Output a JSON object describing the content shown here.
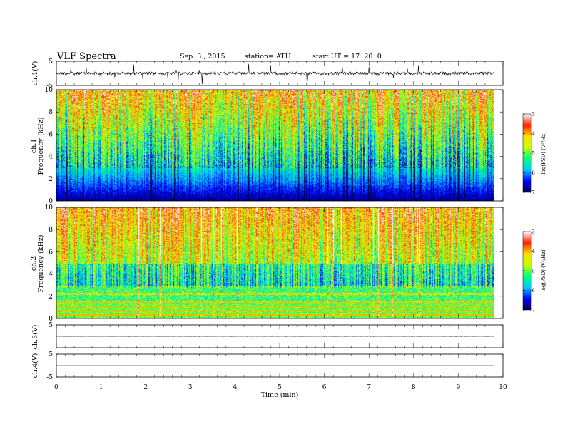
{
  "header": {
    "title": "VLF  Spectra",
    "date": "Sep. 3  , 2015",
    "station": "station= ATH",
    "start": "start  UT  =    17: 20: 0"
  },
  "chart_data": [
    {
      "type": "line",
      "panel": "ch1-waveform",
      "ylabel": "ch.1(V)",
      "ylim": [
        -5,
        5
      ],
      "yticks": [
        "5",
        "-5"
      ],
      "trace_level": 0,
      "trace_noise": 0.6,
      "spikes": true
    },
    {
      "type": "heatmap",
      "panel": "ch1-spectrogram",
      "ylabel_top": "ch.1",
      "ylabel": "Frequency  (kHz)",
      "ylim": [
        0,
        10
      ],
      "yticks": [
        "0",
        "2",
        "4",
        "6",
        "8",
        "10"
      ],
      "xlim": [
        0,
        9.8
      ],
      "colorbar": {
        "label": "log(PSD) (V²/Hz)",
        "range": [
          -7,
          -3
        ],
        "ticks": [
          "-3",
          "-4",
          "-5",
          "-6",
          "-7"
        ],
        "colors": [
          "#00004a",
          "#0000ff",
          "#00c8ff",
          "#00ff80",
          "#c8ff00",
          "#ffe000",
          "#ff2000",
          "#ffffff"
        ]
      }
    },
    {
      "type": "heatmap",
      "panel": "ch2-spectrogram",
      "ylabel_top": "ch.2",
      "ylabel": "Frequency  (kHz)",
      "ylim": [
        0,
        10
      ],
      "yticks": [
        "0",
        "2",
        "4",
        "6",
        "8",
        "10"
      ],
      "xlim": [
        0,
        9.8
      ],
      "colorbar": {
        "label": "log(PSD) (V²/Hz)",
        "range": [
          -7,
          -3
        ],
        "ticks": [
          "-3",
          "-4",
          "-5",
          "-6",
          "-7"
        ],
        "colors": [
          "#00004a",
          "#0000ff",
          "#00c8ff",
          "#00ff80",
          "#c8ff00",
          "#ffe000",
          "#ff2000",
          "#ffffff"
        ]
      }
    },
    {
      "type": "line",
      "panel": "ch3-waveform",
      "ylabel": "ch.3(V)",
      "ylim": [
        -5,
        5
      ],
      "yticks": [
        "5"
      ],
      "trace_level": 0,
      "trace_noise": 0.05,
      "spikes": false
    },
    {
      "type": "line",
      "panel": "ch4-waveform",
      "ylabel": "ch.4(V)",
      "ylim": [
        -5,
        5
      ],
      "yticks": [
        "5",
        "-5"
      ],
      "trace_level": 0,
      "trace_noise": 0,
      "spikes": false
    }
  ],
  "xaxis": {
    "xlabel": "Time  (min)",
    "xlim": [
      0,
      10
    ],
    "ticks": [
      "0",
      "1",
      "2",
      "3",
      "4",
      "5",
      "6",
      "7",
      "8",
      "9",
      "10"
    ],
    "data_end": 9.8
  }
}
